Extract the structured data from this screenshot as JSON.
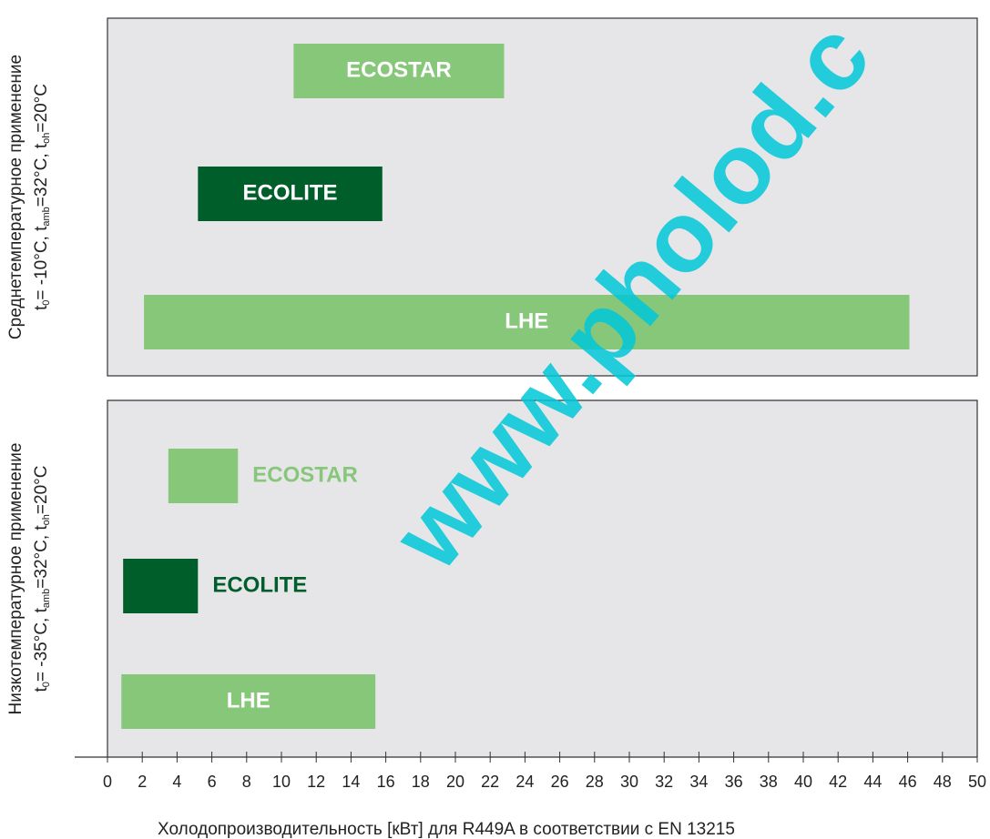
{
  "chart_data": [
    {
      "type": "range_bar",
      "ylabel": "Среднетемпературное применение",
      "ylabel_parts": [
        "t",
        "0",
        "= -10°C, t",
        "amb",
        "=32°C, t",
        "oh",
        "=20°C"
      ],
      "categories": [
        "ECOSTAR",
        "ECOLITE",
        "LHE"
      ],
      "starts": [
        10.7,
        5.2,
        2.1
      ],
      "ends": [
        22.8,
        15.8,
        46.1
      ],
      "colors": [
        "#86c77a",
        "#005e2b",
        "#86c77a"
      ],
      "label_position": [
        "inside",
        "inside",
        "inside"
      ]
    },
    {
      "type": "range_bar",
      "ylabel": "Низкотемпературное применение",
      "ylabel_parts": [
        "t",
        "0",
        "= -35°C, t",
        "amb",
        "=32°C, t",
        "oh",
        "=20°C"
      ],
      "categories": [
        "ECOSTAR",
        "ECOLITE",
        "LHE"
      ],
      "starts": [
        3.5,
        0.9,
        0.8
      ],
      "ends": [
        7.5,
        5.2,
        15.4
      ],
      "colors": [
        "#86c77a",
        "#005e2b",
        "#86c77a"
      ],
      "label_position": [
        "outside",
        "outside",
        "inside"
      ],
      "xlabel": "Холодопроизводительность [кВт] для R449A в соответствии с EN 13215",
      "xlim": [
        0,
        50
      ],
      "xticks": [
        0,
        2,
        4,
        6,
        8,
        10,
        12,
        14,
        16,
        18,
        20,
        22,
        24,
        26,
        28,
        30,
        32,
        34,
        36,
        38,
        40,
        42,
        44,
        46,
        48,
        50
      ]
    }
  ],
  "watermark": "www.pholod.c"
}
